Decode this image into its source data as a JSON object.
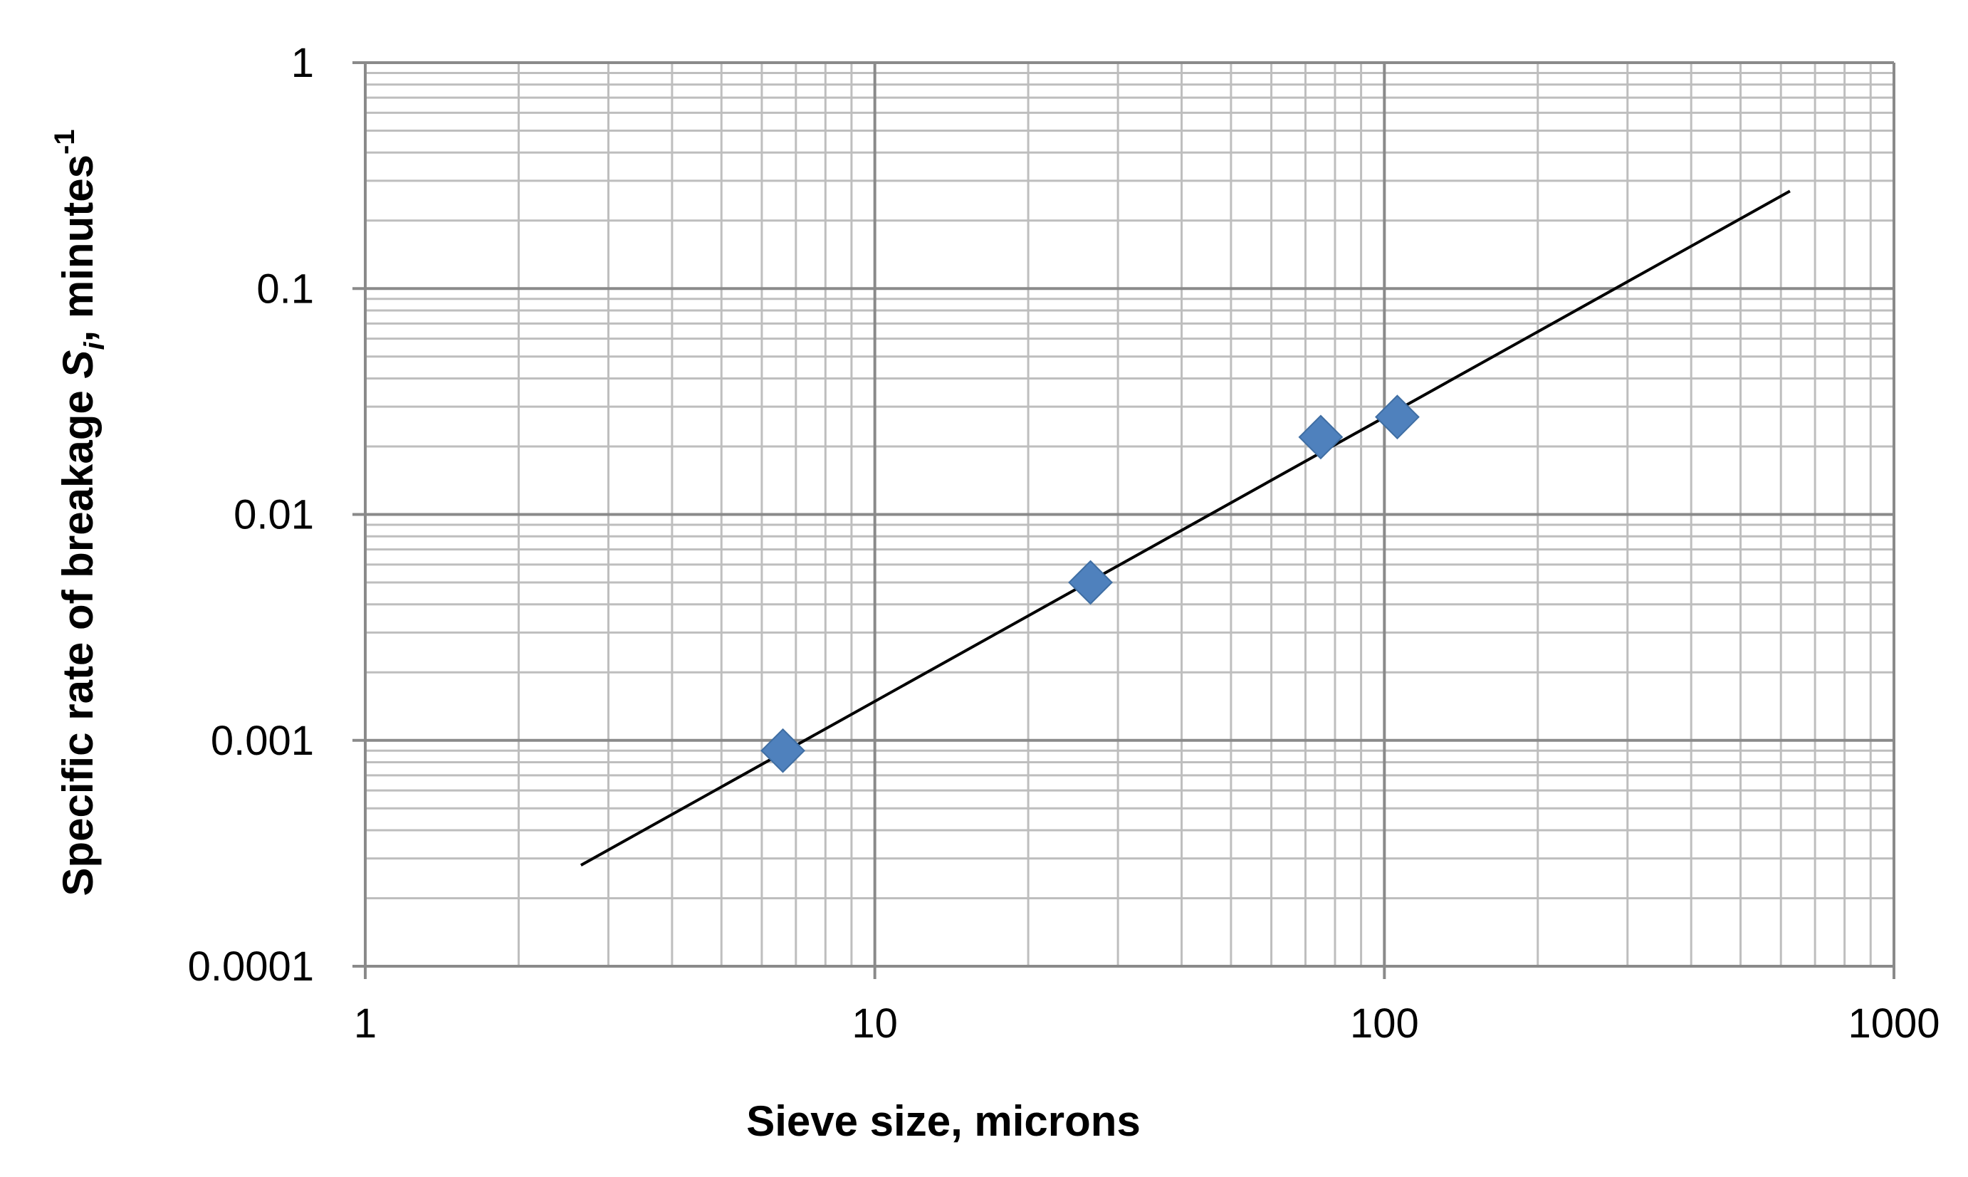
{
  "chart_data": {
    "type": "scatter",
    "title": "",
    "xlabel": "Sieve size, microns",
    "ylabel": {
      "main": "Specific rate of breakage ",
      "symbol": "S",
      "subscript": "i",
      "units": ", minutes",
      "superscript": "-1"
    },
    "x_scale": "log",
    "y_scale": "log",
    "xlim": [
      1,
      1000
    ],
    "ylim": [
      0.0001,
      1
    ],
    "x_ticks": [
      "1",
      "10",
      "100",
      "1000"
    ],
    "y_ticks": [
      "0.0001",
      "0.001",
      "0.01",
      "0.1",
      "1"
    ],
    "grid": true,
    "legend": "none",
    "series": [
      {
        "marker": "diamond",
        "color": "#4f81bd",
        "points": [
          {
            "x": 6.6,
            "y": 0.0009
          },
          {
            "x": 26.5,
            "y": 0.005
          },
          {
            "x": 75,
            "y": 0.022
          },
          {
            "x": 106,
            "y": 0.027
          }
        ]
      }
    ],
    "trendline": {
      "color": "#000000",
      "points": [
        {
          "x": 2.65,
          "y": 0.00028
        },
        {
          "x": 625,
          "y": 0.27
        }
      ]
    }
  }
}
